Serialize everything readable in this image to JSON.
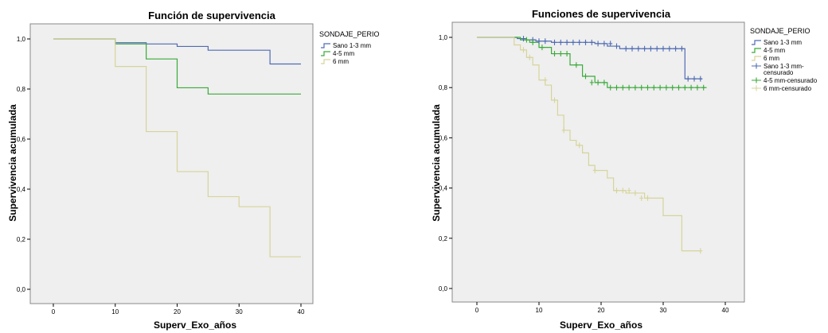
{
  "chart_data": [
    {
      "type": "line",
      "step": true,
      "title": "Función de supervivencia",
      "xlabel": "Superv_Exo_años",
      "ylabel": "Supervivencia acumulada",
      "xlim": [
        0,
        40
      ],
      "ylim": [
        0,
        1
      ],
      "x_ticks": [
        0,
        10,
        20,
        30,
        40
      ],
      "y_ticks": [
        0,
        0.2,
        0.4,
        0.6,
        0.8,
        1.0
      ],
      "x_tick_labels": [
        "0",
        "10",
        "20",
        "30",
        "40"
      ],
      "y_tick_labels": [
        "0,0",
        "0,2",
        "0,4",
        "0,6",
        "0,8",
        "1,0"
      ],
      "grid": false,
      "plot_background": "#efefef",
      "legend_title": "SONDAJE_PERIO",
      "legend_position": "right",
      "series": [
        {
          "name": "Sano 1-3 mm",
          "color": "#4f6bb3",
          "censored": false,
          "x": [
            0,
            10,
            15,
            20,
            25,
            35,
            40
          ],
          "y": [
            1.0,
            0.985,
            0.98,
            0.97,
            0.955,
            0.9,
            0.9
          ]
        },
        {
          "name": "4-5 mm",
          "color": "#3aaa3a",
          "censored": false,
          "x": [
            0,
            10,
            15,
            20,
            25,
            40
          ],
          "y": [
            1.0,
            0.98,
            0.92,
            0.805,
            0.78,
            0.78
          ]
        },
        {
          "name": "6 mm",
          "color": "#d6d49a",
          "censored": false,
          "x": [
            0,
            10,
            15,
            20,
            25,
            30,
            35,
            40
          ],
          "y": [
            1.0,
            0.89,
            0.63,
            0.47,
            0.37,
            0.33,
            0.13,
            0.13
          ]
        }
      ]
    },
    {
      "type": "line",
      "step": true,
      "title": "Funciones de supervivencia",
      "xlabel": "Superv_Exo_años",
      "ylabel": "Supervivencia acumulada",
      "xlim": [
        0,
        40
      ],
      "ylim": [
        0,
        1
      ],
      "x_ticks": [
        0,
        10,
        20,
        30,
        40
      ],
      "y_ticks": [
        0,
        0.2,
        0.4,
        0.6,
        0.8,
        1.0
      ],
      "x_tick_labels": [
        "0",
        "10",
        "20",
        "30",
        "40"
      ],
      "y_tick_labels": [
        "0,0",
        "0,2",
        "0,4",
        "0,6",
        "0,8",
        "1,0"
      ],
      "grid": false,
      "plot_background": "#efefef",
      "legend_title": "SONDAJE_PERIO",
      "legend_position": "right",
      "series": [
        {
          "name": "Sano 1-3 mm",
          "color": "#4f6bb3",
          "censored": false,
          "x": [
            0,
            6.5,
            8,
            9.5,
            12,
            19,
            21,
            23,
            33.5,
            36.3
          ],
          "y": [
            1.0,
            0.995,
            0.99,
            0.985,
            0.98,
            0.975,
            0.965,
            0.955,
            0.835,
            0.835
          ]
        },
        {
          "name": "4-5 mm",
          "color": "#3aaa3a",
          "censored": false,
          "x": [
            0,
            7,
            8.5,
            10,
            12,
            15,
            17,
            19,
            21,
            37
          ],
          "y": [
            1.0,
            0.99,
            0.98,
            0.96,
            0.935,
            0.89,
            0.845,
            0.82,
            0.8,
            0.8
          ]
        },
        {
          "name": "6 mm",
          "color": "#d6d49a",
          "censored": false,
          "x": [
            0,
            6,
            7,
            8,
            9,
            10,
            11,
            12,
            13,
            14,
            15,
            16,
            17,
            18,
            19,
            21,
            22,
            24,
            27,
            30,
            33,
            36
          ],
          "y": [
            1.0,
            0.97,
            0.95,
            0.92,
            0.89,
            0.83,
            0.81,
            0.75,
            0.69,
            0.63,
            0.59,
            0.57,
            0.54,
            0.49,
            0.47,
            0.44,
            0.39,
            0.38,
            0.36,
            0.29,
            0.15,
            0.15
          ]
        },
        {
          "name": "Sano 1-3 mm-censurado",
          "color": "#4f6bb3",
          "censored": true,
          "x": [
            7.5,
            9,
            10,
            11,
            12.5,
            13.5,
            14.5,
            15.5,
            16.5,
            17.5,
            18.5,
            19.5,
            20.5,
            21.5,
            22.5,
            24,
            25,
            26,
            27,
            28,
            29,
            30,
            31,
            32,
            33,
            34,
            35,
            36
          ],
          "y": [
            0.995,
            0.99,
            0.985,
            0.985,
            0.98,
            0.98,
            0.98,
            0.98,
            0.98,
            0.98,
            0.98,
            0.975,
            0.975,
            0.975,
            0.965,
            0.955,
            0.955,
            0.955,
            0.955,
            0.955,
            0.955,
            0.955,
            0.955,
            0.955,
            0.955,
            0.835,
            0.835,
            0.835
          ]
        },
        {
          "name": "4-5 mm-censurado",
          "color": "#3aaa3a",
          "censored": true,
          "x": [
            8,
            9,
            10.5,
            12.5,
            13.5,
            14.5,
            16,
            17.5,
            18.5,
            19.5,
            20.5,
            21.5,
            22.5,
            23.5,
            24.5,
            25.5,
            26.5,
            27.5,
            28.5,
            29.5,
            30.5,
            31.5,
            32.5,
            33.5,
            34.5,
            35.5,
            36.5
          ],
          "y": [
            0.99,
            0.98,
            0.96,
            0.935,
            0.935,
            0.935,
            0.89,
            0.845,
            0.82,
            0.82,
            0.82,
            0.8,
            0.8,
            0.8,
            0.8,
            0.8,
            0.8,
            0.8,
            0.8,
            0.8,
            0.8,
            0.8,
            0.8,
            0.8,
            0.8,
            0.8,
            0.8
          ]
        },
        {
          "name": "6 mm-censurado",
          "color": "#d6d49a",
          "censored": true,
          "x": [
            7.5,
            8.5,
            11,
            12.5,
            14,
            16.5,
            19,
            22.5,
            23.5,
            24.5,
            25.5,
            26.5,
            27.5,
            36
          ],
          "y": [
            0.95,
            0.92,
            0.83,
            0.75,
            0.63,
            0.57,
            0.47,
            0.39,
            0.39,
            0.39,
            0.38,
            0.36,
            0.36,
            0.15
          ]
        }
      ]
    }
  ]
}
